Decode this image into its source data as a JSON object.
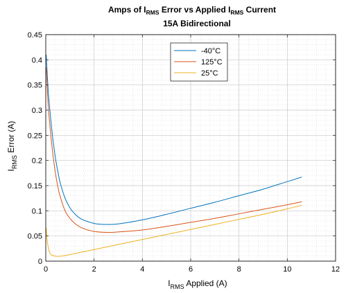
{
  "chart_data": {
    "type": "line",
    "title_line1": {
      "parts": [
        "Amps of I",
        "RMS",
        " Error vs Applied I",
        "RMS",
        " Current"
      ]
    },
    "title_line2": "15A Bidirectional",
    "xlabel": {
      "main": "I",
      "sub": "RMS",
      "rest": " Applied (A)"
    },
    "ylabel": {
      "main": "I",
      "sub": "RMS",
      "rest": " Error (A)"
    },
    "xlim": [
      0,
      12
    ],
    "ylim": [
      0,
      0.45
    ],
    "xticks": [
      0,
      2,
      4,
      6,
      8,
      10,
      12
    ],
    "yticks": [
      0,
      0.05,
      0.1,
      0.15,
      0.2,
      0.25,
      0.3,
      0.35,
      0.4,
      0.45
    ],
    "xtick_labels": [
      "0",
      "2",
      "4",
      "6",
      "8",
      "10",
      "12"
    ],
    "ytick_labels": [
      "0",
      "0.05",
      "0.1",
      "0.15",
      "0.2",
      "0.25",
      "0.3",
      "0.35",
      "0.4",
      "0.45"
    ],
    "grid": true,
    "minor_grid": true,
    "legend_position": "top-center",
    "series": [
      {
        "name": "-40°C",
        "color": "#0072BD",
        "x": [
          0.02,
          0.1,
          0.2,
          0.3,
          0.4,
          0.5,
          0.6,
          0.8,
          1.0,
          1.2,
          1.5,
          2.0,
          2.4,
          3.0,
          4.0,
          5.0,
          6.0,
          7.0,
          8.0,
          9.0,
          10.0,
          10.6
        ],
        "y": [
          0.41,
          0.34,
          0.285,
          0.24,
          0.205,
          0.178,
          0.155,
          0.125,
          0.106,
          0.094,
          0.083,
          0.075,
          0.073,
          0.074,
          0.082,
          0.093,
          0.105,
          0.117,
          0.13,
          0.143,
          0.158,
          0.167
        ]
      },
      {
        "name": "125°C",
        "color": "#D95319",
        "x": [
          0.02,
          0.1,
          0.2,
          0.3,
          0.4,
          0.5,
          0.6,
          0.8,
          1.0,
          1.2,
          1.5,
          2.0,
          2.6,
          3.0,
          4.0,
          5.0,
          6.0,
          7.0,
          8.0,
          9.0,
          10.0,
          10.6
        ],
        "y": [
          0.385,
          0.31,
          0.255,
          0.21,
          0.175,
          0.148,
          0.128,
          0.1,
          0.085,
          0.075,
          0.066,
          0.059,
          0.057,
          0.058,
          0.062,
          0.069,
          0.077,
          0.085,
          0.094,
          0.103,
          0.112,
          0.118
        ]
      },
      {
        "name": "25°C",
        "color": "#EDB120",
        "x": [
          0.02,
          0.05,
          0.1,
          0.15,
          0.2,
          0.3,
          0.4,
          0.5,
          0.6,
          0.8,
          1.0,
          1.5,
          2.0,
          3.0,
          4.0,
          5.0,
          6.0,
          7.0,
          8.0,
          9.0,
          10.0,
          10.6
        ],
        "y": [
          0.066,
          0.045,
          0.028,
          0.019,
          0.014,
          0.011,
          0.01,
          0.0095,
          0.0098,
          0.011,
          0.013,
          0.018,
          0.023,
          0.033,
          0.043,
          0.053,
          0.063,
          0.073,
          0.083,
          0.093,
          0.104,
          0.111
        ]
      }
    ]
  }
}
